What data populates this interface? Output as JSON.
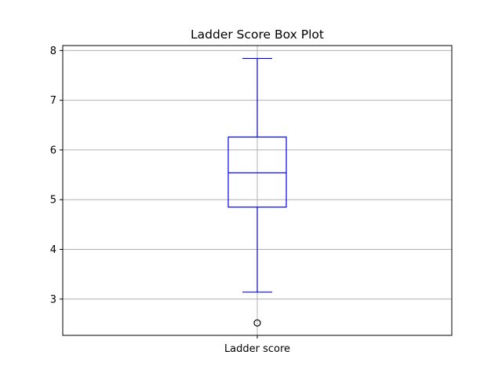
{
  "chart_data": {
    "type": "box",
    "title": "Ladder Score Box Plot",
    "xlabel": "",
    "ylabel": "",
    "categories": [
      "Ladder score"
    ],
    "boxes": [
      {
        "name": "Ladder score",
        "whisker_low": 3.14,
        "q1": 4.85,
        "median": 5.54,
        "q3": 6.26,
        "whisker_high": 7.84,
        "outliers": [
          2.52
        ]
      }
    ],
    "ylim": [
      2.27,
      8.1
    ],
    "yticks": [
      "3",
      "4",
      "5",
      "6",
      "7",
      "8"
    ],
    "grid": true,
    "box_color": "#0000ff",
    "outlier_color": "#000000",
    "grid_color": "#b0b0b0"
  }
}
